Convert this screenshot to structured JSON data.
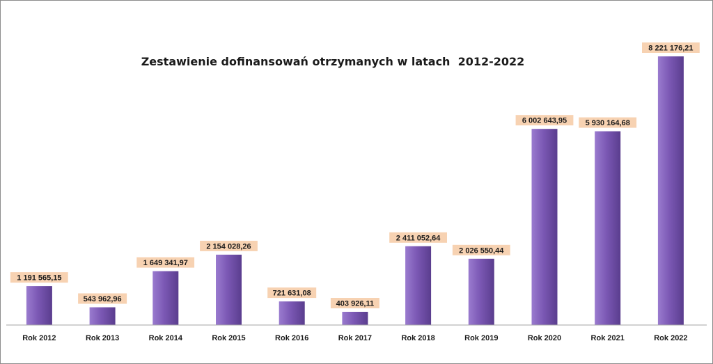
{
  "chart_data": {
    "type": "bar",
    "title": "Zestawienie dofinansowań otrzymanych w latach  2012-2022",
    "xlabel": "",
    "ylabel": "",
    "categories": [
      "Rok 2012",
      "Rok 2013",
      "Rok 2014",
      "Rok 2015",
      "Rok 2016",
      "Rok 2017",
      "Rok 2018",
      "Rok 2019",
      "Rok 2020",
      "Rok 2021",
      "Rok 2022"
    ],
    "values": [
      1191565.15,
      543962.96,
      1649341.97,
      2154028.26,
      721631.08,
      403926.11,
      2411052.64,
      2026550.44,
      6002643.95,
      5930164.68,
      8221176.21
    ],
    "value_labels": [
      "1 191 565,15",
      "543 962,96",
      "1 649 341,97",
      "2 154 028,26",
      "721 631,08",
      "403 926,11",
      "2 411 052,64",
      "2 026 550,44",
      "6 002 643,95",
      "5 930 164,68",
      "8 221 176,21"
    ],
    "ylim": [
      0,
      8221176.21
    ],
    "grid": false,
    "legend": "none",
    "colors": {
      "bar_light": "#9a7bcf",
      "bar_mid": "#7b58b4",
      "bar_dark": "#5a3d8e",
      "label_bg": "#f7d2b2",
      "axis": "#a6a6a6"
    }
  }
}
